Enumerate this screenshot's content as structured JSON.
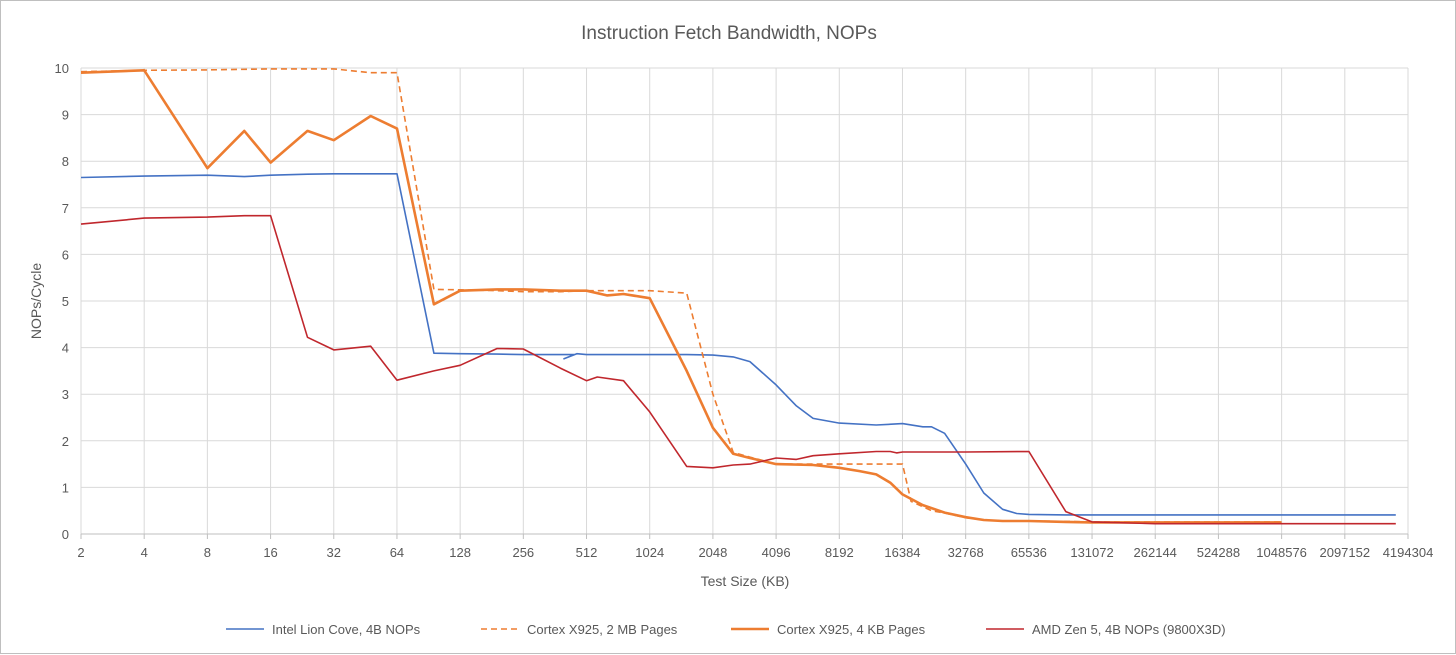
{
  "chart_data": {
    "type": "line",
    "title": "Instruction Fetch Bandwidth, NOPs",
    "xlabel": "Test Size (KB)",
    "ylabel": "NOPs/Cycle",
    "x_scale": "log2",
    "xlim": [
      2,
      4194304
    ],
    "ylim": [
      0,
      10
    ],
    "grid": true,
    "legend_position": "bottom",
    "x_ticks": [
      "2",
      "4",
      "8",
      "16",
      "32",
      "64",
      "128",
      "256",
      "512",
      "1024",
      "2048",
      "4096",
      "8192",
      "16384",
      "32768",
      "65536",
      "131072",
      "262144",
      "524288",
      "1048576",
      "2097152",
      "4194304"
    ],
    "y_ticks": [
      "0",
      "1",
      "2",
      "3",
      "4",
      "5",
      "6",
      "7",
      "8",
      "9",
      "10"
    ],
    "series": [
      {
        "name": "Intel Lion Cove, 4B NOPs",
        "color": "#4472c4",
        "dash": "solid",
        "width": 1.6,
        "points": [
          [
            2,
            7.65
          ],
          [
            4,
            7.68
          ],
          [
            8,
            7.7
          ],
          [
            12,
            7.67
          ],
          [
            16,
            7.7
          ],
          [
            24,
            7.72
          ],
          [
            32,
            7.73
          ],
          [
            48,
            7.73
          ],
          [
            64,
            7.73
          ],
          [
            96,
            3.88
          ],
          [
            128,
            3.87
          ],
          [
            192,
            3.86
          ],
          [
            256,
            3.85
          ],
          [
            320,
            3.85
          ],
          [
            384,
            3.85
          ],
          [
            448,
            3.85
          ],
          [
            400,
            3.76
          ],
          [
            460,
            3.87
          ],
          [
            512,
            3.85
          ],
          [
            768,
            3.85
          ],
          [
            1024,
            3.85
          ],
          [
            1536,
            3.85
          ],
          [
            2048,
            3.84
          ],
          [
            2560,
            3.8
          ],
          [
            3072,
            3.7
          ],
          [
            4096,
            3.2
          ],
          [
            5120,
            2.75
          ],
          [
            6144,
            2.48
          ],
          [
            8192,
            2.38
          ],
          [
            12288,
            2.34
          ],
          [
            16384,
            2.37
          ],
          [
            20480,
            2.3
          ],
          [
            22528,
            2.3
          ],
          [
            26000,
            2.16
          ],
          [
            32768,
            1.5
          ],
          [
            40000,
            0.88
          ],
          [
            49152,
            0.53
          ],
          [
            57344,
            0.44
          ],
          [
            65536,
            0.42
          ],
          [
            98304,
            0.41
          ],
          [
            131072,
            0.41
          ],
          [
            262144,
            0.41
          ],
          [
            524288,
            0.41
          ],
          [
            1048576,
            0.41
          ],
          [
            2097152,
            0.41
          ],
          [
            3670016,
            0.41
          ]
        ]
      },
      {
        "name": "Cortex X925, 2 MB Pages",
        "color": "#ed7d31",
        "dash": "dashed",
        "width": 1.6,
        "points": [
          [
            2,
            9.92
          ],
          [
            4,
            9.95
          ],
          [
            8,
            9.96
          ],
          [
            16,
            9.98
          ],
          [
            32,
            9.98
          ],
          [
            48,
            9.9
          ],
          [
            64,
            9.9
          ],
          [
            96,
            5.25
          ],
          [
            128,
            5.24
          ],
          [
            192,
            5.22
          ],
          [
            256,
            5.2
          ],
          [
            384,
            5.2
          ],
          [
            512,
            5.22
          ],
          [
            768,
            5.22
          ],
          [
            1024,
            5.22
          ],
          [
            1536,
            5.17
          ],
          [
            2048,
            3.0
          ],
          [
            2560,
            1.75
          ],
          [
            3072,
            1.65
          ],
          [
            4096,
            1.5
          ],
          [
            6144,
            1.5
          ],
          [
            8192,
            1.5
          ],
          [
            12288,
            1.5
          ],
          [
            16384,
            1.5
          ],
          [
            18000,
            0.7
          ],
          [
            22528,
            0.5
          ],
          [
            26000,
            0.45
          ],
          [
            32768,
            0.35
          ],
          [
            40000,
            0.3
          ],
          [
            49152,
            0.28
          ],
          [
            65536,
            0.28
          ],
          [
            98304,
            0.27
          ],
          [
            131072,
            0.26
          ],
          [
            262144,
            0.26
          ],
          [
            524288,
            0.26
          ],
          [
            1048576,
            0.26
          ]
        ]
      },
      {
        "name": "Cortex X925, 4 KB Pages",
        "color": "#ed7d31",
        "dash": "solid",
        "width": 2.6,
        "points": [
          [
            2,
            9.9
          ],
          [
            4,
            9.95
          ],
          [
            8,
            7.85
          ],
          [
            12,
            8.65
          ],
          [
            16,
            7.97
          ],
          [
            24,
            8.65
          ],
          [
            32,
            8.45
          ],
          [
            48,
            8.97
          ],
          [
            64,
            8.7
          ],
          [
            96,
            4.93
          ],
          [
            128,
            5.22
          ],
          [
            192,
            5.25
          ],
          [
            256,
            5.25
          ],
          [
            384,
            5.22
          ],
          [
            512,
            5.22
          ],
          [
            640,
            5.12
          ],
          [
            768,
            5.15
          ],
          [
            1024,
            5.06
          ],
          [
            1536,
            3.5
          ],
          [
            2048,
            2.28
          ],
          [
            2560,
            1.72
          ],
          [
            3072,
            1.63
          ],
          [
            4096,
            1.5
          ],
          [
            6144,
            1.48
          ],
          [
            8192,
            1.42
          ],
          [
            10240,
            1.35
          ],
          [
            12288,
            1.28
          ],
          [
            14336,
            1.1
          ],
          [
            16384,
            0.85
          ],
          [
            20480,
            0.62
          ],
          [
            26000,
            0.46
          ],
          [
            32768,
            0.36
          ],
          [
            40000,
            0.3
          ],
          [
            49152,
            0.28
          ],
          [
            65536,
            0.28
          ],
          [
            98304,
            0.26
          ],
          [
            131072,
            0.25
          ],
          [
            262144,
            0.25
          ],
          [
            524288,
            0.25
          ],
          [
            1048576,
            0.25
          ]
        ]
      },
      {
        "name": "AMD Zen 5, 4B NOPs (9800X3D)",
        "color": "#c0272d",
        "dash": "solid",
        "width": 1.6,
        "points": [
          [
            2,
            6.65
          ],
          [
            4,
            6.78
          ],
          [
            8,
            6.8
          ],
          [
            12,
            6.83
          ],
          [
            16,
            6.83
          ],
          [
            24,
            4.22
          ],
          [
            32,
            3.95
          ],
          [
            48,
            4.03
          ],
          [
            64,
            3.3
          ],
          [
            96,
            3.5
          ],
          [
            128,
            3.62
          ],
          [
            192,
            3.98
          ],
          [
            256,
            3.97
          ],
          [
            384,
            3.56
          ],
          [
            512,
            3.29
          ],
          [
            576,
            3.37
          ],
          [
            768,
            3.29
          ],
          [
            1024,
            2.62
          ],
          [
            1536,
            1.45
          ],
          [
            2048,
            1.42
          ],
          [
            2560,
            1.48
          ],
          [
            3072,
            1.5
          ],
          [
            4096,
            1.63
          ],
          [
            5120,
            1.6
          ],
          [
            6144,
            1.68
          ],
          [
            8192,
            1.72
          ],
          [
            12288,
            1.77
          ],
          [
            14336,
            1.77
          ],
          [
            15360,
            1.74
          ],
          [
            16384,
            1.76
          ],
          [
            32768,
            1.76
          ],
          [
            65536,
            1.77
          ],
          [
            98304,
            0.48
          ],
          [
            131072,
            0.26
          ],
          [
            262144,
            0.22
          ],
          [
            524288,
            0.22
          ],
          [
            1048576,
            0.22
          ],
          [
            2097152,
            0.22
          ],
          [
            3670016,
            0.22
          ]
        ]
      }
    ]
  }
}
